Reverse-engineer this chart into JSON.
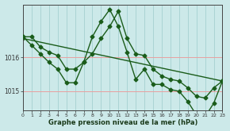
{
  "line1_x": [
    0,
    1,
    2,
    3,
    4,
    5,
    6,
    7,
    8,
    9,
    10,
    11,
    12,
    13,
    14,
    15,
    16,
    17,
    18,
    19,
    20,
    21,
    22,
    23
  ],
  "line1_y": [
    1016.6,
    1016.6,
    1016.3,
    1016.15,
    1016.05,
    1015.65,
    1015.65,
    1015.85,
    1016.1,
    1016.55,
    1016.9,
    1017.35,
    1016.55,
    1016.1,
    1016.05,
    1015.65,
    1015.45,
    1015.35,
    1015.3,
    1015.1,
    1014.85,
    1014.8,
    1015.1,
    1015.3
  ],
  "line2_x": [
    0,
    1,
    2,
    3,
    4,
    5,
    6,
    7,
    8,
    9,
    10,
    11,
    12,
    13,
    14,
    15,
    16,
    17,
    18,
    19,
    20,
    21,
    22,
    23
  ],
  "line2_y": [
    1016.6,
    1016.35,
    1016.1,
    1015.85,
    1015.65,
    1015.25,
    1015.25,
    1015.85,
    1016.6,
    1017.05,
    1017.4,
    1016.9,
    1016.15,
    1015.35,
    1015.65,
    1015.2,
    1015.2,
    1015.05,
    1015.0,
    1014.7,
    1014.3,
    1014.25,
    1014.65,
    1015.3
  ],
  "line3_x": [
    0,
    23
  ],
  "line3_y": [
    1016.55,
    1015.3
  ],
  "background_color": "#cce9e9",
  "grid_h_color": "#e8a0a0",
  "grid_v_color": "#aad4d4",
  "line_color": "#1a5c1a",
  "xlabel": "Graphe pression niveau de la mer (hPa)",
  "xticks": [
    0,
    1,
    2,
    3,
    4,
    5,
    6,
    7,
    8,
    9,
    10,
    11,
    12,
    13,
    14,
    15,
    16,
    17,
    18,
    19,
    20,
    21,
    22,
    23
  ],
  "yticks": [
    1015,
    1016
  ],
  "xlim": [
    0,
    23
  ],
  "ylim": [
    1014.45,
    1017.55
  ],
  "marker": "D",
  "markersize": 2.5,
  "linewidth": 1.0
}
